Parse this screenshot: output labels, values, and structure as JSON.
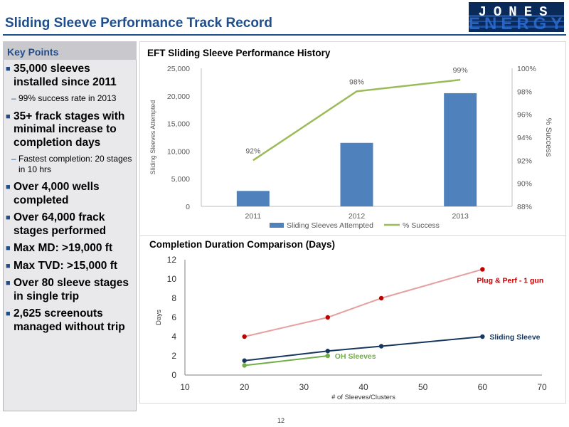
{
  "header": {
    "title": "Sliding Sleeve Performance Track Record",
    "logo_text": "JONES",
    "logo_sub_text": "ENERGY"
  },
  "key_points": {
    "title": "Key Points",
    "items": [
      {
        "text": "35,000 sleeves installed since 2011",
        "sub": "99% success rate in 2013"
      },
      {
        "text": "35+ frack stages with minimal increase to completion days",
        "sub": "Fastest completion: 20 stages in 10 hrs"
      },
      {
        "text": "Over 4,000 wells completed"
      },
      {
        "text": "Over 64,000 frack stages performed"
      },
      {
        "text": "Max MD: >19,000 ft"
      },
      {
        "text": "Max TVD: >15,000 ft"
      },
      {
        "text": "Over 80 sleeve stages in single trip"
      },
      {
        "text": "2,625 screenouts managed without trip"
      }
    ]
  },
  "page_number": "12",
  "colors": {
    "brand": "#1f4e8c",
    "bar": "#4f81bd",
    "success_line": "#9bbb59",
    "plug_perf": "#e6a0a0",
    "plug_perf_point": "#c00000",
    "sliding_sleeve": "#17375e",
    "oh_sleeves": "#70ad47"
  },
  "chart_data": [
    {
      "type": "bar",
      "title": "EFT Sliding Sleeve Performance History",
      "categories": [
        "2011",
        "2012",
        "2013"
      ],
      "series": [
        {
          "name": "Sliding Sleeves Attempted",
          "type": "bar",
          "axis": "left",
          "values": [
            2800,
            11500,
            20500
          ]
        },
        {
          "name": "% Success",
          "type": "line",
          "axis": "right",
          "values": [
            92,
            98,
            99
          ],
          "data_labels": [
            "92%",
            "98%",
            "99%"
          ]
        }
      ],
      "ylabel": "Sliding Sleeves Attempted",
      "y2label": "% Success",
      "ylim": [
        0,
        25000
      ],
      "y_ticks": [
        "0",
        "5,000",
        "10,000",
        "15,000",
        "20,000",
        "25,000"
      ],
      "y2lim": [
        88,
        100
      ],
      "y2_ticks": [
        "88%",
        "90%",
        "92%",
        "94%",
        "96%",
        "98%",
        "100%"
      ],
      "legend": "bottom"
    },
    {
      "type": "line",
      "title": "Completion Duration Comparison (Days)",
      "xlabel": "# of Sleeves/Clusters",
      "ylabel": "Days",
      "xlim": [
        10,
        70
      ],
      "x_ticks": [
        "10",
        "20",
        "30",
        "40",
        "50",
        "60",
        "70"
      ],
      "ylim": [
        0,
        12
      ],
      "y_ticks": [
        "0",
        "2",
        "4",
        "6",
        "8",
        "10",
        "12"
      ],
      "series": [
        {
          "name": "Plug & Perf - 1 gun",
          "x": [
            20,
            34,
            43,
            60
          ],
          "y": [
            4,
            6,
            8,
            11
          ]
        },
        {
          "name": "Sliding Sleeve",
          "x": [
            20,
            34,
            43,
            60
          ],
          "y": [
            1.5,
            2.5,
            3,
            4
          ]
        },
        {
          "name": "OH Sleeves",
          "x": [
            20,
            34
          ],
          "y": [
            1,
            2
          ]
        }
      ]
    }
  ]
}
